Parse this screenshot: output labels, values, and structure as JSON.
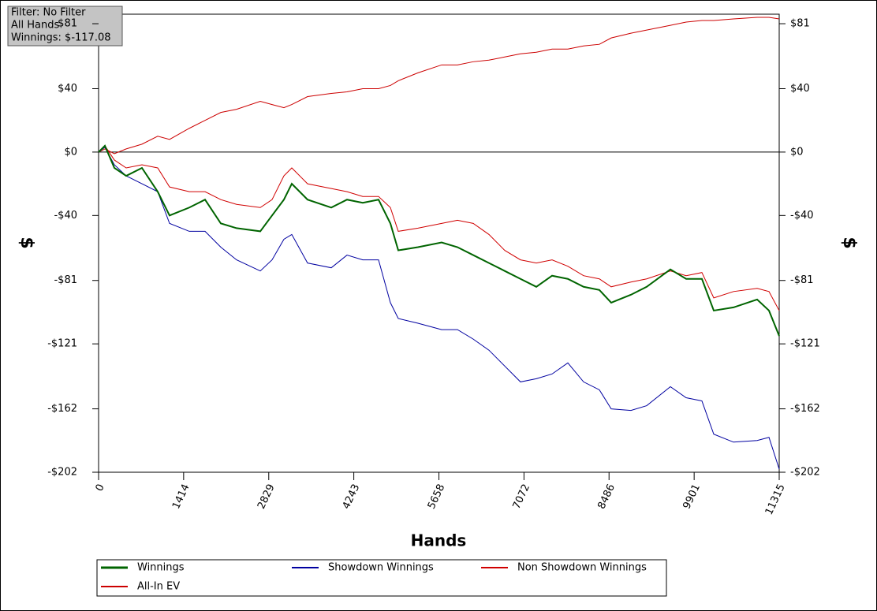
{
  "info": {
    "lines": [
      "Filter: No Filter",
      "All Hands",
      "Winnings: $-117.08"
    ]
  },
  "chart_data": {
    "type": "line",
    "xlabel": "Hands",
    "ylabel": "$",
    "x": [
      0,
      105,
      262,
      459,
      721,
      983,
      1180,
      1508,
      1770,
      2032,
      2294,
      2688,
      2884,
      3081,
      3212,
      3474,
      3868,
      4130,
      4392,
      4654,
      4851,
      4982,
      5310,
      5703,
      5966,
      6228,
      6490,
      6752,
      7014,
      7277,
      7539,
      7801,
      8063,
      8325,
      8522,
      8850,
      9112,
      9506,
      9768,
      10030,
      10227,
      10555,
      10948,
      11145,
      11315
    ],
    "series": [
      {
        "name": "Winnings",
        "color": "#006400",
        "width": 2,
        "values": [
          0,
          4,
          -10,
          -15,
          -10,
          -25,
          -40,
          -35,
          -30,
          -45,
          -48,
          -50,
          -40,
          -30,
          -20,
          -30,
          -35,
          -30,
          -32,
          -30,
          -45,
          -62,
          -60,
          -57,
          -60,
          -65,
          -70,
          -75,
          -80,
          -85,
          -78,
          -80,
          -85,
          -87,
          -95,
          -90,
          -85,
          -74,
          -80,
          -80,
          -100,
          -98,
          -93,
          -100,
          -116
        ]
      },
      {
        "name": "Showdown Winnings",
        "color": "#0000a0",
        "width": 1,
        "values": [
          0,
          3,
          -8,
          -15,
          -20,
          -25,
          -45,
          -50,
          -50,
          -60,
          -68,
          -75,
          -68,
          -55,
          -52,
          -70,
          -73,
          -65,
          -68,
          -68,
          -95,
          -105,
          -108,
          -112,
          -112,
          -118,
          -125,
          -135,
          -145,
          -143,
          -140,
          -133,
          -145,
          -150,
          -162,
          -163,
          -160,
          -148,
          -155,
          -157,
          -178,
          -183,
          -182,
          -180,
          -200
        ]
      },
      {
        "name": "Non Showdown Winnings",
        "color": "#d00000",
        "width": 1,
        "values": [
          0,
          4,
          -5,
          -10,
          -8,
          -10,
          -22,
          -25,
          -25,
          -30,
          -33,
          -35,
          -30,
          -15,
          -10,
          -20,
          -23,
          -25,
          -28,
          -28,
          -35,
          -50,
          -48,
          -45,
          -43,
          -45,
          -52,
          -62,
          -68,
          -70,
          -68,
          -72,
          -78,
          -80,
          -85,
          -82,
          -80,
          -75,
          -78,
          -76,
          -92,
          -88,
          -86,
          -88,
          -100
        ]
      },
      {
        "name": "All-In EV",
        "color": "#cc0000",
        "width": 1,
        "values": [
          0,
          2,
          -1,
          2,
          5,
          10,
          8,
          15,
          20,
          25,
          27,
          32,
          30,
          28,
          30,
          35,
          37,
          38,
          40,
          40,
          42,
          45,
          50,
          55,
          55,
          57,
          58,
          60,
          62,
          63,
          65,
          65,
          67,
          68,
          72,
          75,
          77,
          80,
          82,
          83,
          83,
          84,
          85,
          85,
          84
        ]
      }
    ],
    "xlim": [
      0,
      11315
    ],
    "xticks": [
      0,
      1414,
      2829,
      4243,
      5658,
      7072,
      8486,
      9901,
      11315
    ],
    "ylim": [
      -202,
      87
    ],
    "yticks": [
      {
        "value": -202,
        "label": "-$202"
      },
      {
        "value": -162,
        "label": "-$162"
      },
      {
        "value": -121,
        "label": "-$121"
      },
      {
        "value": -81,
        "label": "-$81"
      },
      {
        "value": -40,
        "label": "-$40"
      },
      {
        "value": 0,
        "label": "$0"
      },
      {
        "value": 40,
        "label": "$40"
      },
      {
        "value": 81,
        "label": "$81"
      }
    ]
  }
}
